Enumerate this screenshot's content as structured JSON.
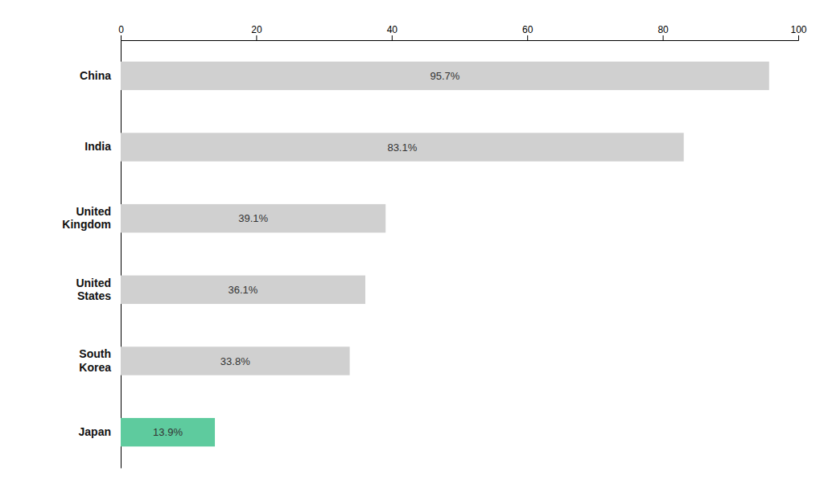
{
  "chart_data": {
    "type": "bar",
    "orientation": "horizontal",
    "categories": [
      "China",
      "India",
      "United\nKingdom",
      "United\nStates",
      "South\nKorea",
      "Japan"
    ],
    "values": [
      95.7,
      83.1,
      39.1,
      36.1,
      33.8,
      13.9
    ],
    "value_labels": [
      "95.7%",
      "83.1%",
      "39.1%",
      "36.1%",
      "33.8%",
      "13.9%"
    ],
    "data_labels": true,
    "colors": [
      "#d0d0d0",
      "#d0d0d0",
      "#d0d0d0",
      "#d0d0d0",
      "#d0d0d0",
      "#5ecb9e"
    ],
    "xlim": [
      0,
      100
    ],
    "xticks": [
      0,
      20,
      40,
      60,
      80,
      100
    ],
    "grid": false
  }
}
